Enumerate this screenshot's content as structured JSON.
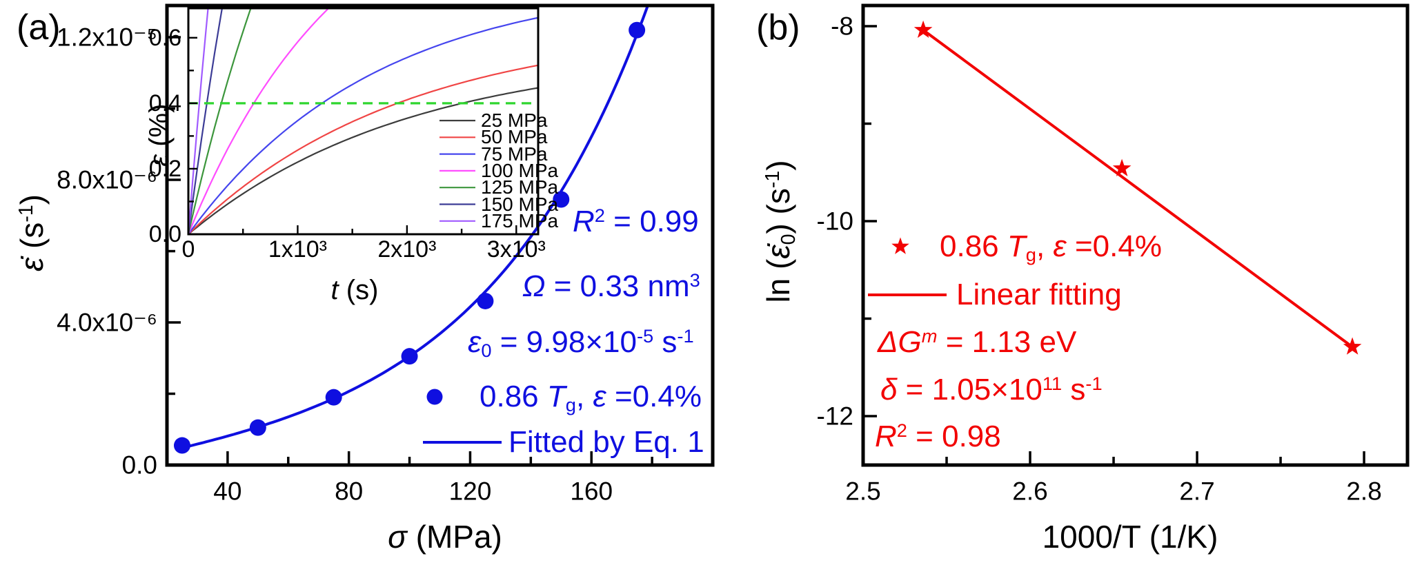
{
  "figure": {
    "panel_a_tag": "(a)",
    "panel_b_tag": "(b)"
  },
  "chart_data": [
    {
      "id": "panel-a",
      "type": "scatter",
      "tag": "(a)",
      "xlabel": "σ (MPa)",
      "ylabel": "ε̇ (s⁻¹)",
      "xlim": [
        20,
        200
      ],
      "ylim": [
        0,
        1.289e-05
      ],
      "xticks_major": [
        40,
        80,
        120,
        160
      ],
      "xticks_minor": [
        60,
        100,
        140,
        180
      ],
      "xtick_labels": [
        "40",
        "80",
        "120",
        "160"
      ],
      "yticks_major": [
        0,
        4e-06,
        8e-06,
        1.2e-05
      ],
      "yticks_minor": [
        2e-06,
        6e-06,
        1e-05
      ],
      "ytick_labels": [
        "0.0",
        "4.0x10⁻⁶",
        "8.0x10⁻⁶",
        "1.2x10⁻⁵"
      ],
      "grid": false,
      "series": [
        {
          "name": "0.86 Tg, ε =0.4%",
          "marker": "circle",
          "color": "#0f0fe0",
          "x": [
            25,
            50,
            75,
            100,
            125,
            150,
            175
          ],
          "y": [
            5.5e-07,
            1.05e-06,
            1.9e-06,
            3.05e-06,
            4.6e-06,
            7.45e-06,
            1.22e-05
          ]
        },
        {
          "name": "Fitted by Eq. 1",
          "type": "line",
          "color": "#0f0fe0",
          "model": "y = A*sinh(B*x)",
          "A": 1.037e-06,
          "B": 0.018,
          "x_range": [
            25,
            179
          ]
        }
      ],
      "annotations": [
        "R² = 0.99",
        "Ω = 0.33 nm³",
        "ε₀ = 9.98×10⁻⁵ s⁻¹"
      ]
    },
    {
      "id": "panel-a-inset",
      "type": "line",
      "xlabel": "t (s)",
      "ylabel": "ε (%)",
      "xlim": [
        0,
        3200
      ],
      "ylim": [
        0,
        0.69
      ],
      "xticks_major": [
        0,
        1000,
        2000,
        3000
      ],
      "xticks_minor": [
        500,
        1500,
        2500
      ],
      "xtick_labels": [
        "0",
        "1x10³",
        "2x10³",
        "3x10³"
      ],
      "yticks_major": [
        0,
        0.2,
        0.4,
        0.6
      ],
      "yticks_minor": [
        0.1,
        0.3,
        0.5
      ],
      "ytick_labels": [
        "0.0",
        "0.2",
        "0.4",
        "0.6"
      ],
      "grid": false,
      "reference_line": {
        "y": 0.4,
        "style": "dashed",
        "color": "#2fd62f"
      },
      "curve_model": "strain_pct = A*(1-exp(-t/tau))",
      "series": [
        {
          "name": "25 MPa",
          "color": "#3c3c3c",
          "A": 0.56,
          "tau": 2000
        },
        {
          "name": "50 MPa",
          "color": "#f04545",
          "A": 0.64,
          "tau": 1950
        },
        {
          "name": "75 MPa",
          "color": "#4545ee",
          "A": 0.78,
          "tau": 1700
        },
        {
          "name": "100 MPa",
          "color": "#ff4dff",
          "A": 1.15,
          "tau": 1400
        },
        {
          "name": "125 MPa",
          "color": "#3c963c",
          "A": 2.0,
          "tau": 1350
        },
        {
          "name": "150 MPa",
          "color": "#3c3c96",
          "A": 3.0,
          "tau": 1180
        },
        {
          "name": "175 MPa",
          "color": "#a05aff",
          "A": 4.0,
          "tau": 950
        }
      ]
    },
    {
      "id": "panel-b",
      "type": "scatter",
      "tag": "(b)",
      "xlabel": "1000/T (1/K)",
      "ylabel": "ln (ε̇₀) (s⁻¹)",
      "xlim": [
        2.5,
        2.826
      ],
      "ylim": [
        -12.502,
        -7.788
      ],
      "xticks_major": [
        2.5,
        2.6,
        2.7,
        2.8
      ],
      "xticks_minor": [
        2.55,
        2.65,
        2.75
      ],
      "xtick_labels": [
        "2.5",
        "2.6",
        "2.7",
        "2.8"
      ],
      "yticks_major": [
        -8,
        -10,
        -12
      ],
      "yticks_minor": [
        -9,
        -11
      ],
      "ytick_labels": [
        "-8",
        "-10",
        "-12"
      ],
      "grid": false,
      "series": [
        {
          "name": "0.86 Tg, ε =0.4%",
          "marker": "star",
          "color": "#f20202",
          "x": [
            2.536,
            2.655,
            2.793
          ],
          "y": [
            -8.04,
            -9.46,
            -11.29
          ]
        },
        {
          "name": "Linear fitting",
          "type": "line",
          "color": "#f20202",
          "x": [
            2.536,
            2.793
          ],
          "y": [
            -8.04,
            -11.29
          ]
        }
      ],
      "annotations": [
        "ΔGᵐ = 1.13 eV",
        "δ = 1.05×10¹¹ s⁻¹",
        "R² = 0.98"
      ]
    }
  ],
  "labels": {
    "panel_a_tag": "(a)",
    "panel_b_tag": "(b)",
    "a_ylabel": [
      {
        "t": "ε̇",
        "i": true
      },
      {
        "t": " (s"
      },
      {
        "t": "-1",
        "sup": true
      },
      {
        "t": ")"
      }
    ],
    "a_xlabel": [
      {
        "t": "σ",
        "i": true
      },
      {
        "t": " (MPa)"
      }
    ],
    "a_ann_r2": [
      {
        "t": "R",
        "i": true
      },
      {
        "t": "2",
        "sup": true
      },
      {
        "t": " = 0.99"
      }
    ],
    "a_ann_omega": [
      {
        "t": "Ω",
        "i": true
      },
      {
        "t": " = 0.33 nm"
      },
      {
        "t": "3",
        "sup": true
      }
    ],
    "a_ann_eps0": [
      {
        "t": "ε",
        "i": true
      },
      {
        "t": "0",
        "sub": true
      },
      {
        "t": " = 9.98×10"
      },
      {
        "t": "-5",
        "sup": true
      },
      {
        "t": " s"
      },
      {
        "t": "-1",
        "sup": true
      }
    ],
    "a_legend_points": [
      {
        "t": "0.86 "
      },
      {
        "t": "T",
        "i": true
      },
      {
        "t": "g",
        "sub": true
      },
      {
        "t": ", "
      },
      {
        "t": "ε",
        "i": true
      },
      {
        "t": " =0.4%"
      }
    ],
    "a_legend_fit": [
      {
        "t": "Fitted by Eq. 1"
      }
    ],
    "inset_ylabel": [
      {
        "t": "ε",
        "i": true
      },
      {
        "t": " (%)"
      }
    ],
    "inset_xlabel": [
      {
        "t": "t",
        "i": true
      },
      {
        "t": " (s)"
      }
    ],
    "b_ylabel": [
      {
        "t": "ln ("
      },
      {
        "t": "ε̇",
        "i": true
      },
      {
        "t": "0",
        "sub": true
      },
      {
        "t": ") (s"
      },
      {
        "t": "-1",
        "sup": true
      },
      {
        "t": ")"
      }
    ],
    "b_xlabel": [
      {
        "t": "1000/T (1/K)"
      }
    ],
    "b_legend_points": [
      {
        "t": "0.86 "
      },
      {
        "t": "T",
        "i": true
      },
      {
        "t": "g",
        "sub": true
      },
      {
        "t": ", "
      },
      {
        "t": "ε",
        "i": true
      },
      {
        "t": " =0.4%"
      }
    ],
    "b_legend_fit": [
      {
        "t": "Linear fitting"
      }
    ],
    "b_ann_dg": [
      {
        "t": "Δ",
        "i": true
      },
      {
        "t": "G",
        "i": true
      },
      {
        "t": "m",
        "sup": true,
        "i": true
      },
      {
        "t": " = 1.13 eV"
      }
    ],
    "b_ann_delta": [
      {
        "t": "δ",
        "i": true
      },
      {
        "t": " = 1.05×10"
      },
      {
        "t": "11",
        "sup": true
      },
      {
        "t": " s"
      },
      {
        "t": "-1",
        "sup": true
      }
    ],
    "b_ann_r2": [
      {
        "t": "R",
        "i": true
      },
      {
        "t": "2",
        "sup": true
      },
      {
        "t": " = 0.98"
      }
    ]
  }
}
